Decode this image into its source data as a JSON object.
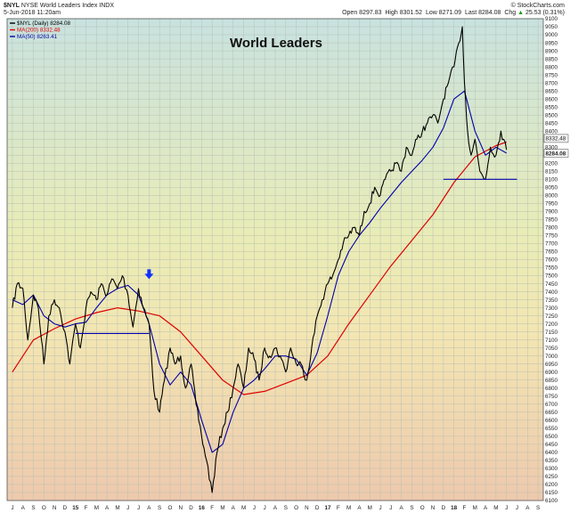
{
  "header": {
    "symbol": "$NYL",
    "name": "NYSE World Leaders Index INDX",
    "date": "5-Jun-2018 11:20am",
    "open_label": "Open",
    "open": "8297.83",
    "high_label": "High",
    "high": "8301.52",
    "low_label": "Low",
    "low": "8271.09",
    "last_label": "Last",
    "last": "8284.08",
    "chg_label": "Chg",
    "chg": "25.53 (0.31%)",
    "chg_arrow": "▲",
    "brand": "© StockCharts.com"
  },
  "chart_data": {
    "type": "line",
    "title": "World Leaders",
    "xlabel": "",
    "ylabel": "",
    "ylim": [
      6100,
      9100
    ],
    "y_ticks": [
      6100,
      6150,
      6200,
      6250,
      6300,
      6350,
      6400,
      6450,
      6500,
      6550,
      6600,
      6650,
      6700,
      6750,
      6800,
      6850,
      6900,
      6950,
      7000,
      7050,
      7100,
      7150,
      7200,
      7250,
      7300,
      7350,
      7400,
      7450,
      7500,
      7550,
      7600,
      7650,
      7700,
      7750,
      7800,
      7850,
      7900,
      7950,
      8000,
      8050,
      8100,
      8150,
      8200,
      8250,
      8300,
      8350,
      8400,
      8450,
      8500,
      8550,
      8600,
      8650,
      8700,
      8750,
      8800,
      8850,
      8900,
      8950,
      9000,
      9050,
      9100
    ],
    "x_month_labels": [
      "J",
      "A",
      "S",
      "O",
      "N",
      "D",
      "15",
      "F",
      "M",
      "A",
      "M",
      "J",
      "J",
      "A",
      "S",
      "O",
      "N",
      "D",
      "16",
      "F",
      "M",
      "A",
      "M",
      "J",
      "J",
      "A",
      "S",
      "O",
      "N",
      "D",
      "17",
      "F",
      "M",
      "A",
      "M",
      "J",
      "J",
      "A",
      "S",
      "O",
      "N",
      "D",
      "18",
      "F",
      "M",
      "A",
      "M",
      "J",
      "J",
      "A",
      "S"
    ],
    "x_start_month": "2014-07",
    "legend": [
      {
        "label": "$NYL (Daily) 8284.08",
        "color": "#000000"
      },
      {
        "label": "MA(200) 8332.48",
        "color": "#dd0000"
      },
      {
        "label": "MA(50) 8263.41",
        "color": "#0000aa"
      }
    ],
    "last_labels": [
      {
        "value": 8332.48,
        "text": "8332.48"
      },
      {
        "value": 8284.08,
        "text": "8284.08"
      }
    ],
    "annotations": {
      "blue_arrow": {
        "date": "2015-08",
        "value": 7490
      },
      "support_lines": [
        {
          "from": "2015-01",
          "to": "2015-08",
          "value": 7140
        },
        {
          "from": "2017-12",
          "to": "2018-07",
          "value": 8100
        }
      ]
    },
    "series": [
      {
        "name": "$NYL (Daily)",
        "color": "#000000",
        "x": [
          "2014-07",
          "2014-07-15",
          "2014-08",
          "2014-08-15",
          "2014-09",
          "2014-09-15",
          "2014-10",
          "2014-10-15",
          "2014-11",
          "2014-11-15",
          "2014-12",
          "2014-12-15",
          "2015-01",
          "2015-01-15",
          "2015-02",
          "2015-02-15",
          "2015-03",
          "2015-03-15",
          "2015-04",
          "2015-04-15",
          "2015-05",
          "2015-05-15",
          "2015-06",
          "2015-06-15",
          "2015-07",
          "2015-07-15",
          "2015-08",
          "2015-08-15",
          "2015-09",
          "2015-09-15",
          "2015-10",
          "2015-10-15",
          "2015-11",
          "2015-11-15",
          "2015-12",
          "2015-12-15",
          "2016-01",
          "2016-01-15",
          "2016-02",
          "2016-02-15",
          "2016-03",
          "2016-03-15",
          "2016-04",
          "2016-04-15",
          "2016-05",
          "2016-05-15",
          "2016-06",
          "2016-06-15",
          "2016-07",
          "2016-07-15",
          "2016-08",
          "2016-08-15",
          "2016-09",
          "2016-09-15",
          "2016-10",
          "2016-10-15",
          "2016-11",
          "2016-11-15",
          "2016-12",
          "2016-12-15",
          "2017-01",
          "2017-01-15",
          "2017-02",
          "2017-02-15",
          "2017-03",
          "2017-03-15",
          "2017-04",
          "2017-04-15",
          "2017-05",
          "2017-05-15",
          "2017-06",
          "2017-06-15",
          "2017-07",
          "2017-07-15",
          "2017-08",
          "2017-08-15",
          "2017-09",
          "2017-09-15",
          "2017-10",
          "2017-10-15",
          "2017-11",
          "2017-11-15",
          "2017-12",
          "2017-12-15",
          "2018-01",
          "2018-01-15",
          "2018-01-25",
          "2018-02",
          "2018-02-10",
          "2018-02-20",
          "2018-03",
          "2018-03-15",
          "2018-04",
          "2018-04-15",
          "2018-05",
          "2018-05-15",
          "2018-06"
        ],
        "values": [
          7300,
          7450,
          7420,
          7100,
          7380,
          7300,
          6950,
          7250,
          7350,
          7300,
          7150,
          6950,
          7200,
          7050,
          7300,
          7400,
          7350,
          7450,
          7380,
          7480,
          7420,
          7500,
          7380,
          7180,
          7420,
          7300,
          7200,
          6780,
          6650,
          6850,
          7050,
          6950,
          7000,
          6800,
          6950,
          6700,
          6500,
          6350,
          6150,
          6400,
          6550,
          6650,
          6800,
          6950,
          6800,
          7050,
          6980,
          6850,
          7050,
          7000,
          7050,
          7000,
          6900,
          7050,
          6950,
          6950,
          6850,
          7050,
          7250,
          7350,
          7450,
          7500,
          7600,
          7700,
          7750,
          7800,
          7750,
          7900,
          7950,
          8050,
          8000,
          8100,
          8150,
          8200,
          8150,
          8300,
          8250,
          8350,
          8400,
          8450,
          8500,
          8450,
          8600,
          8700,
          8800,
          8950,
          9050,
          8700,
          8400,
          8250,
          8350,
          8150,
          8100,
          8300,
          8250,
          8400,
          8284
        ]
      },
      {
        "name": "MA(200)",
        "color": "#dd0000",
        "x": [
          "2014-07",
          "2014-09",
          "2014-11",
          "2015-01",
          "2015-03",
          "2015-05",
          "2015-07",
          "2015-09",
          "2015-11",
          "2016-01",
          "2016-03",
          "2016-05",
          "2016-07",
          "2016-09",
          "2016-11",
          "2017-01",
          "2017-03",
          "2017-05",
          "2017-07",
          "2017-09",
          "2017-11",
          "2018-01",
          "2018-03",
          "2018-05",
          "2018-06"
        ],
        "values": [
          6900,
          7100,
          7170,
          7230,
          7270,
          7300,
          7280,
          7250,
          7150,
          7000,
          6850,
          6760,
          6780,
          6830,
          6880,
          7000,
          7200,
          7380,
          7560,
          7720,
          7880,
          8080,
          8240,
          8310,
          8332
        ]
      },
      {
        "name": "MA(50)",
        "color": "#0000aa",
        "x": [
          "2014-07",
          "2014-08",
          "2014-09",
          "2014-10",
          "2014-11",
          "2014-12",
          "2015-01",
          "2015-02",
          "2015-03",
          "2015-04",
          "2015-05",
          "2015-06",
          "2015-07",
          "2015-08",
          "2015-09",
          "2015-10",
          "2015-11",
          "2015-12",
          "2016-01",
          "2016-02",
          "2016-03",
          "2016-04",
          "2016-05",
          "2016-06",
          "2016-07",
          "2016-08",
          "2016-09",
          "2016-10",
          "2016-11",
          "2016-12",
          "2017-01",
          "2017-02",
          "2017-03",
          "2017-04",
          "2017-05",
          "2017-06",
          "2017-07",
          "2017-08",
          "2017-09",
          "2017-10",
          "2017-11",
          "2017-12",
          "2018-01",
          "2018-02",
          "2018-03",
          "2018-04",
          "2018-05",
          "2018-06"
        ],
        "values": [
          7350,
          7320,
          7380,
          7250,
          7200,
          7180,
          7200,
          7210,
          7300,
          7380,
          7420,
          7440,
          7380,
          7200,
          6950,
          6820,
          6900,
          6820,
          6600,
          6400,
          6450,
          6650,
          6800,
          6850,
          6920,
          7000,
          7000,
          6980,
          6880,
          7020,
          7250,
          7500,
          7650,
          7750,
          7830,
          7920,
          8000,
          8080,
          8150,
          8220,
          8300,
          8420,
          8600,
          8650,
          8400,
          8250,
          8300,
          8263
        ]
      }
    ]
  }
}
